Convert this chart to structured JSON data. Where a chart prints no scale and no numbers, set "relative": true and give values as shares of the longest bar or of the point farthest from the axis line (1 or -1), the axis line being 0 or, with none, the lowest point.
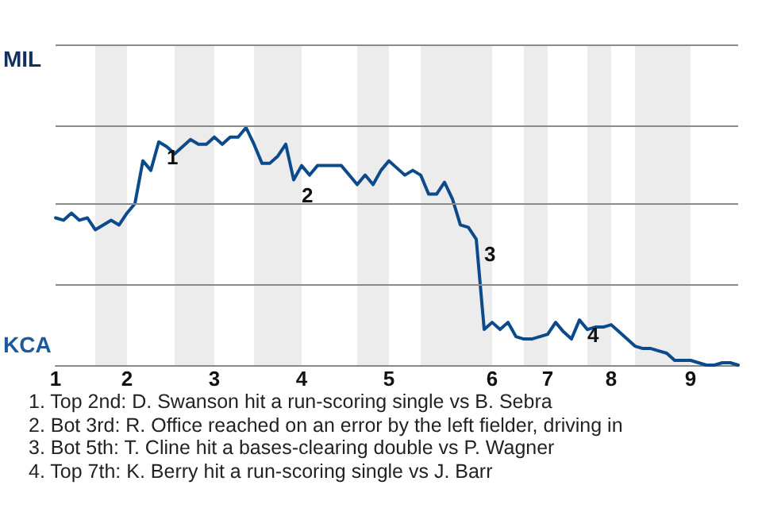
{
  "chart_data": {
    "type": "line",
    "relative": true,
    "categories": [
      "1",
      null,
      null,
      null,
      null,
      null,
      null,
      null,
      null,
      "2",
      null,
      null,
      null,
      null,
      null,
      null,
      null,
      null,
      null,
      null,
      "3",
      null,
      null,
      null,
      null,
      null,
      null,
      null,
      null,
      null,
      null,
      "4",
      null,
      null,
      null,
      null,
      null,
      null,
      null,
      null,
      null,
      null,
      "5",
      null,
      null,
      null,
      null,
      null,
      null,
      null,
      null,
      null,
      null,
      null,
      null,
      "6",
      null,
      null,
      null,
      null,
      null,
      null,
      "7",
      null,
      null,
      null,
      null,
      null,
      null,
      null,
      "8",
      null,
      null,
      null,
      null,
      null,
      null,
      null,
      null,
      null,
      "9",
      null,
      null,
      null,
      null,
      null,
      null
    ],
    "series": [
      {
        "color": "#0d4a8c",
        "values": [
          0.62,
          0.61,
          0.64,
          0.61,
          0.62,
          0.57,
          0.59,
          0.61,
          0.59,
          0.64,
          0.68,
          0.86,
          0.82,
          0.94,
          0.92,
          0.89,
          0.92,
          0.95,
          0.93,
          0.93,
          0.96,
          0.93,
          0.96,
          0.96,
          1,
          0.93,
          0.85,
          0.85,
          0.88,
          0.93,
          0.78,
          0.84,
          0.8,
          0.84,
          0.84,
          0.84,
          0.84,
          0.8,
          0.76,
          0.8,
          0.76,
          0.82,
          0.86,
          0.83,
          0.8,
          0.82,
          0.8,
          0.72,
          0.72,
          0.77,
          0.7,
          0.59,
          0.58,
          0.53,
          0.15,
          0.18,
          0.15,
          0.18,
          0.12,
          0.11,
          0.11,
          0.12,
          0.13,
          0.18,
          0.14,
          0.11,
          0.19,
          0.15,
          0.16,
          0.16,
          0.17,
          0.14,
          0.11,
          0.08,
          0.07,
          0.07,
          0.06,
          0.05,
          0.02,
          0.02,
          0.02,
          0.01,
          0,
          0,
          0.01,
          0.01,
          0
        ]
      }
    ],
    "marker": "none",
    "line_style": "solid",
    "ref_lines": [
      {
        "axis": "y",
        "value": 0.34,
        "color": "#8a8a8a"
      },
      {
        "axis": "y",
        "value": 0.68,
        "color": "#8a8a8a"
      },
      {
        "axis": "y",
        "value": 1.01,
        "color": "#8a8a8a"
      },
      {
        "axis": "y",
        "value": 1.35,
        "color": "#8a8a8a"
      }
    ],
    "annotations": [
      "MIL",
      "KCA",
      "1",
      "2",
      "3",
      "4",
      "1. Top 2nd: D. Swanson hit a run-scoring single vs B. Sebra",
      "2. Bot 3rd: R. Office reached on an error by the left fielder, driving in",
      "3. Bot 5th: T. Cline hit a bases-clearing double vs P. Wagner",
      "4. Top 7th: K. Berry hit a run-scoring single vs J. Barr"
    ]
  }
}
